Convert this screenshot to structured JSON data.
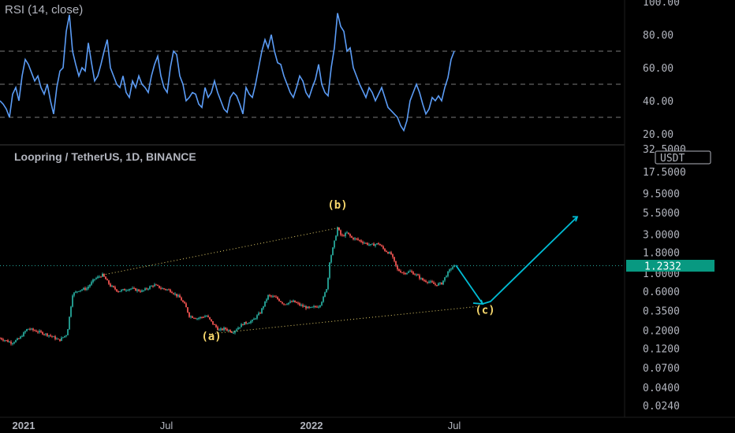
{
  "colors": {
    "background": "#000000",
    "rsi_line": "#5b9cf6",
    "up_candle": "#26a69a",
    "down_candle": "#ef5350",
    "projection": "#00bcd4",
    "wave_label": "#f5d66b",
    "trendline": "#e6d06b",
    "price_tag": "#089981",
    "axis_text": "#b2b5be"
  },
  "chart_data": [
    {
      "type": "line",
      "title": "RSI (14, close)",
      "ylim": [
        15,
        100
      ],
      "y_ticks": [
        "100.00",
        "80.00",
        "60.00",
        "40.00",
        "20.00"
      ],
      "y_tick_values": [
        100,
        80,
        60,
        40,
        20
      ],
      "levels": [
        70,
        50,
        30
      ],
      "x": [
        0,
        4,
        8,
        12,
        16,
        20,
        24,
        28,
        32,
        36,
        40,
        44,
        48,
        52,
        56,
        60,
        64,
        68,
        72,
        76,
        80,
        84,
        88,
        92,
        96,
        100,
        104,
        108,
        112,
        116,
        120,
        124,
        128,
        132,
        136,
        140,
        144,
        148,
        152,
        156,
        160,
        164,
        168,
        172,
        176,
        180,
        184,
        188,
        192,
        196,
        200,
        204,
        208,
        212,
        216,
        220,
        224,
        228,
        232,
        236,
        240,
        244,
        248,
        252,
        256,
        260,
        264,
        268,
        272,
        276,
        280,
        284,
        288,
        292,
        296,
        300,
        304,
        308,
        312,
        316,
        320,
        324,
        328,
        332,
        336,
        340,
        344,
        348,
        352,
        356,
        360,
        364,
        368,
        372,
        376,
        380,
        384,
        388,
        392,
        396,
        400,
        404,
        408,
        412,
        416,
        420,
        424,
        428,
        432,
        436,
        440,
        444,
        448,
        452,
        456,
        460,
        464,
        468,
        472,
        476,
        480,
        484,
        488,
        492,
        496,
        500,
        504,
        508,
        512,
        516,
        520,
        524,
        528,
        532,
        536,
        540,
        544,
        548,
        552,
        556,
        560,
        564,
        568,
        572,
        576
      ],
      "values": [
        40,
        38,
        35,
        30,
        44,
        48,
        40,
        55,
        65,
        62,
        57,
        52,
        55,
        48,
        44,
        50,
        40,
        32,
        48,
        58,
        60,
        82,
        92,
        70,
        62,
        55,
        60,
        58,
        75,
        63,
        52,
        55,
        62,
        70,
        77,
        60,
        55,
        50,
        48,
        55,
        45,
        42,
        52,
        48,
        55,
        50,
        48,
        45,
        55,
        62,
        67,
        55,
        48,
        45,
        60,
        70,
        68,
        55,
        50,
        40,
        42,
        45,
        44,
        38,
        36,
        48,
        42,
        45,
        52,
        45,
        40,
        35,
        33,
        42,
        45,
        43,
        38,
        32,
        48,
        44,
        42,
        50,
        60,
        70,
        77,
        72,
        80,
        70,
        63,
        62,
        55,
        50,
        45,
        42,
        48,
        55,
        52,
        45,
        42,
        48,
        53,
        62,
        50,
        45,
        43,
        60,
        72,
        93,
        85,
        82,
        70,
        72,
        60,
        55,
        50,
        46,
        42,
        48,
        45,
        40,
        44,
        48,
        42,
        36,
        34,
        32,
        30,
        25,
        22,
        28,
        40,
        45,
        50,
        45,
        38,
        32,
        35,
        42,
        40,
        43,
        40,
        48,
        54,
        65,
        70
      ]
    },
    {
      "type": "candlestick",
      "title": "Loopring / TetherUS, 1D, BINANCE",
      "y_scale": "log",
      "ylim": [
        0.02,
        35
      ],
      "y_ticks": [
        "17.5000",
        "9.5000",
        "5.5000",
        "3.0000",
        "1.8000",
        "1.0000",
        "0.6000",
        "0.3500",
        "0.2000",
        "0.1200",
        "0.0700",
        "0.0400",
        "0.0240"
      ],
      "y_tick_values": [
        17.5,
        9.5,
        5.5,
        3.0,
        1.8,
        1.0,
        0.6,
        0.35,
        0.2,
        0.12,
        0.07,
        0.04,
        0.024
      ],
      "y_top_partial_label": "32.5000",
      "currency_label": "USDT",
      "last_price": "1.2332",
      "last_price_value": 1.2332,
      "x_labels": [
        "2021",
        "Jul",
        "2022",
        "Jul"
      ],
      "x_label_days": [
        30,
        211,
        395,
        576
      ],
      "price_path": [
        {
          "day": 0,
          "price": 0.16
        },
        {
          "day": 15,
          "price": 0.14
        },
        {
          "day": 25,
          "price": 0.16
        },
        {
          "day": 35,
          "price": 0.21
        },
        {
          "day": 50,
          "price": 0.19
        },
        {
          "day": 65,
          "price": 0.17
        },
        {
          "day": 75,
          "price": 0.15
        },
        {
          "day": 85,
          "price": 0.18
        },
        {
          "day": 92,
          "price": 0.55
        },
        {
          "day": 100,
          "price": 0.62
        },
        {
          "day": 110,
          "price": 0.65
        },
        {
          "day": 120,
          "price": 0.85
        },
        {
          "day": 130,
          "price": 0.95
        },
        {
          "day": 140,
          "price": 0.7
        },
        {
          "day": 150,
          "price": 0.6
        },
        {
          "day": 165,
          "price": 0.65
        },
        {
          "day": 180,
          "price": 0.6
        },
        {
          "day": 195,
          "price": 0.72
        },
        {
          "day": 205,
          "price": 0.65
        },
        {
          "day": 215,
          "price": 0.62
        },
        {
          "day": 228,
          "price": 0.5
        },
        {
          "day": 235,
          "price": 0.4
        },
        {
          "day": 240,
          "price": 0.3
        },
        {
          "day": 250,
          "price": 0.28
        },
        {
          "day": 262,
          "price": 0.3
        },
        {
          "day": 270,
          "price": 0.24
        },
        {
          "day": 278,
          "price": 0.2
        },
        {
          "day": 285,
          "price": 0.21
        },
        {
          "day": 295,
          "price": 0.19
        },
        {
          "day": 308,
          "price": 0.24
        },
        {
          "day": 320,
          "price": 0.26
        },
        {
          "day": 330,
          "price": 0.33
        },
        {
          "day": 340,
          "price": 0.53
        },
        {
          "day": 350,
          "price": 0.5
        },
        {
          "day": 360,
          "price": 0.42
        },
        {
          "day": 372,
          "price": 0.45
        },
        {
          "day": 382,
          "price": 0.4
        },
        {
          "day": 392,
          "price": 0.37
        },
        {
          "day": 405,
          "price": 0.4
        },
        {
          "day": 410,
          "price": 0.5
        },
        {
          "day": 415,
          "price": 0.7
        },
        {
          "day": 418,
          "price": 1.4
        },
        {
          "day": 423,
          "price": 2.2
        },
        {
          "day": 428,
          "price": 3.6
        },
        {
          "day": 433,
          "price": 2.8
        },
        {
          "day": 440,
          "price": 3.1
        },
        {
          "day": 446,
          "price": 2.7
        },
        {
          "day": 452,
          "price": 2.6
        },
        {
          "day": 460,
          "price": 2.4
        },
        {
          "day": 470,
          "price": 2.2
        },
        {
          "day": 480,
          "price": 2.3
        },
        {
          "day": 488,
          "price": 1.9
        },
        {
          "day": 496,
          "price": 1.7
        },
        {
          "day": 504,
          "price": 1.1
        },
        {
          "day": 512,
          "price": 1.0
        },
        {
          "day": 520,
          "price": 1.05
        },
        {
          "day": 528,
          "price": 0.95
        },
        {
          "day": 536,
          "price": 0.82
        },
        {
          "day": 545,
          "price": 0.78
        },
        {
          "day": 552,
          "price": 0.72
        },
        {
          "day": 560,
          "price": 0.75
        },
        {
          "day": 566,
          "price": 0.95
        },
        {
          "day": 572,
          "price": 1.15
        },
        {
          "day": 576,
          "price": 1.2332
        }
      ],
      "trendlines": [
        {
          "from": {
            "day": 130,
            "price": 0.95
          },
          "to": {
            "day": 430,
            "price": 3.6
          }
        },
        {
          "from": {
            "day": 265,
            "price": 0.18
          },
          "to": {
            "day": 605,
            "price": 0.39
          }
        }
      ],
      "projection": [
        {
          "day": 578,
          "price": 1.25
        },
        {
          "day": 612,
          "price": 0.42
        },
        {
          "day": 622,
          "price": 0.45
        },
        {
          "day": 732,
          "price": 4.9
        }
      ],
      "projection_arrow_heads": [
        {
          "tip": {
            "day": 612,
            "price": 0.42
          },
          "back": {
            "day": 610,
            "price": 0.47
          },
          "back2": {
            "day": 600,
            "price": 0.43
          }
        },
        {
          "tip": {
            "day": 732,
            "price": 4.9
          },
          "back": {
            "day": 726,
            "price": 4.9
          },
          "back2": {
            "day": 730,
            "price": 4.3
          }
        }
      ],
      "wave_labels": [
        {
          "text": "(a)",
          "day": 268,
          "price": 0.152
        },
        {
          "text": "(b)",
          "day": 428,
          "price": 6.2
        },
        {
          "text": "(c)",
          "day": 615,
          "price": 0.32
        }
      ]
    }
  ]
}
